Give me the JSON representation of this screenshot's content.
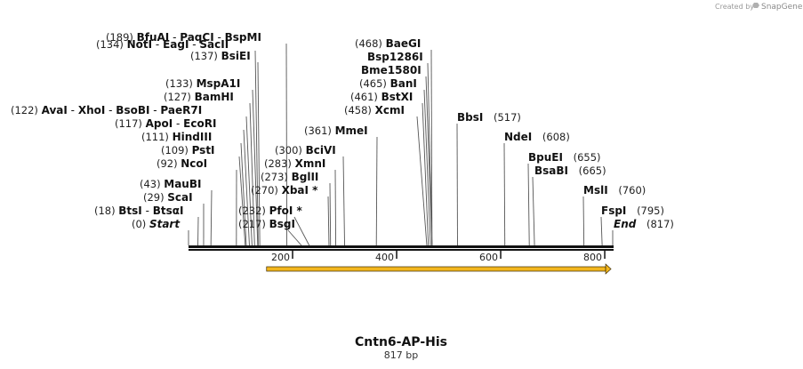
{
  "credit": "Created by",
  "brand": "SnapGene",
  "title": "Cntn6-AP-His",
  "length_label": "817 bp",
  "total_bp": 817,
  "axis_ticks": [
    "200",
    "400",
    "600",
    "800"
  ],
  "axis_tick_values": [
    200,
    400,
    600,
    800
  ],
  "feature_arrow_range": [
    150,
    812
  ],
  "colors": {
    "line": "#111111",
    "leader": "#555555",
    "feature": "#f2b61d",
    "feature_edge": "#3a2a05"
  },
  "sites": [
    {
      "pos": "(189)",
      "names": [
        "BfuAI",
        "PaqCI",
        "BspMI"
      ],
      "bp": 189
    },
    {
      "pos": "(137)",
      "names": [
        "BsiEI"
      ],
      "bp": 137
    },
    {
      "pos": "(134)",
      "names": [
        "NotI",
        "EagI",
        "SacII"
      ],
      "bp": 134
    },
    {
      "pos": "(133)",
      "names": [
        "MspA1I"
      ],
      "bp": 133
    },
    {
      "pos": "(127)",
      "names": [
        "BamHI"
      ],
      "bp": 127
    },
    {
      "pos": "(122)",
      "names": [
        "AvaI",
        "XhoI",
        "BsoBI",
        "PaeR7I"
      ],
      "bp": 122
    },
    {
      "pos": "(117)",
      "names": [
        "ApoI",
        "EcoRI"
      ],
      "bp": 117
    },
    {
      "pos": "(111)",
      "names": [
        "HindIII"
      ],
      "bp": 111
    },
    {
      "pos": "(109)",
      "names": [
        "PstI"
      ],
      "bp": 109
    },
    {
      "pos": "(92)",
      "names": [
        "NcoI"
      ],
      "bp": 92
    },
    {
      "pos": "(43)",
      "names": [
        "MauBI"
      ],
      "bp": 43
    },
    {
      "pos": "(29)",
      "names": [
        "ScaI"
      ],
      "bp": 29
    },
    {
      "pos": "(18)",
      "names": [
        "BtsI",
        "BtsαI"
      ],
      "bp": 18
    },
    {
      "pos": "(0)",
      "names": [
        "Start"
      ],
      "bp": 0,
      "italic": true
    },
    {
      "pos": "(300)",
      "names": [
        "BciVI"
      ],
      "bp": 300
    },
    {
      "pos": "(283)",
      "names": [
        "XmnI"
      ],
      "bp": 283
    },
    {
      "pos": "(273)",
      "names": [
        "BglII"
      ],
      "bp": 273
    },
    {
      "pos": "(270)",
      "names": [
        "XbaI *"
      ],
      "bp": 270
    },
    {
      "pos": "(232)",
      "names": [
        "PfoI *"
      ],
      "bp": 232
    },
    {
      "pos": "(217)",
      "names": [
        "BsgI"
      ],
      "bp": 217
    },
    {
      "pos": "(361)",
      "names": [
        "MmeI"
      ],
      "bp": 361
    },
    {
      "pos": "(468)",
      "names": [
        "BaeGI"
      ],
      "bp": 468
    },
    {
      "pos": "",
      "names": [
        "Bsp1286I"
      ],
      "bp": 468
    },
    {
      "pos": "",
      "names": [
        "Bme1580I"
      ],
      "bp": 468
    },
    {
      "pos": "(465)",
      "names": [
        "BanI"
      ],
      "bp": 465
    },
    {
      "pos": "(461)",
      "names": [
        "BstXI"
      ],
      "bp": 461
    },
    {
      "pos": "(458)",
      "names": [
        "XcmI"
      ],
      "bp": 458
    },
    {
      "pos": "(517)",
      "names": [
        "BbsI"
      ],
      "bp": 517
    },
    {
      "pos": "(608)",
      "names": [
        "NdeI"
      ],
      "bp": 608
    },
    {
      "pos": "(655)",
      "names": [
        "BpuEI"
      ],
      "bp": 655
    },
    {
      "pos": "(665)",
      "names": [
        "BsaBI"
      ],
      "bp": 665
    },
    {
      "pos": "(760)",
      "names": [
        "MslI"
      ],
      "bp": 760
    },
    {
      "pos": "(795)",
      "names": [
        "FspI"
      ],
      "bp": 795
    },
    {
      "pos": "(817)",
      "names": [
        "End"
      ],
      "bp": 817,
      "italic": true
    }
  ]
}
